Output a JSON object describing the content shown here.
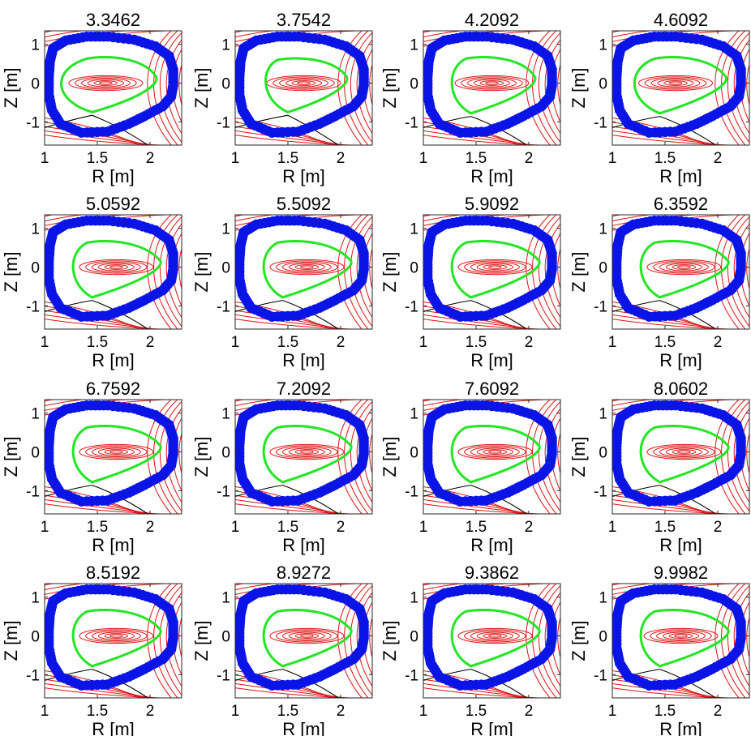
{
  "figure": {
    "background": "#ffffff",
    "colors": {
      "wall": "#0a14e6",
      "lcfs": "#22e622",
      "flux_contours": "#e01010",
      "separatrix_legs": "#000000",
      "strike_mark": "#d020d0"
    }
  },
  "chart_data": [
    {
      "type": "contour",
      "title": "3.3462",
      "xlabel": "R [m]",
      "ylabel": "Z [m]",
      "xlim": [
        1.0,
        2.3
      ],
      "ylim": [
        -1.6,
        1.35
      ],
      "xticks": [
        "1",
        "1.5",
        "2"
      ],
      "yticks": [
        "-1",
        "0",
        "1"
      ],
      "axis_center": [
        1.58,
        0.0
      ],
      "lcfs": {
        "r_in": 1.08,
        "r_out": 2.06,
        "z_top": 0.68,
        "z_bot": -0.75,
        "tip_r": 1.45
      }
    },
    {
      "type": "contour",
      "title": "3.7542",
      "xlabel": "R [m]",
      "ylabel": "Z [m]",
      "xlim": [
        1.0,
        2.3
      ],
      "ylim": [
        -1.6,
        1.35
      ],
      "xticks": [
        "1",
        "1.5",
        "2"
      ],
      "yticks": [
        "-1",
        "0",
        "1"
      ],
      "axis_center": [
        1.65,
        0.0
      ],
      "lcfs": {
        "r_in": 1.25,
        "r_out": 2.06,
        "z_top": 0.65,
        "z_bot": -0.75,
        "tip_r": 1.5
      }
    },
    {
      "type": "contour",
      "title": "4.2092",
      "xlabel": "R [m]",
      "ylabel": "Z [m]",
      "xlim": [
        1.0,
        2.3
      ],
      "ylim": [
        -1.6,
        1.35
      ],
      "xticks": [
        "1",
        "1.5",
        "2"
      ],
      "yticks": [
        "-1",
        "0",
        "1"
      ],
      "axis_center": [
        1.65,
        0.0
      ],
      "lcfs": {
        "r_in": 1.23,
        "r_out": 2.06,
        "z_top": 0.68,
        "z_bot": -0.78,
        "tip_r": 1.45
      }
    },
    {
      "type": "contour",
      "title": "4.6092",
      "xlabel": "R [m]",
      "ylabel": "Z [m]",
      "xlim": [
        1.0,
        2.3
      ],
      "ylim": [
        -1.6,
        1.35
      ],
      "xticks": [
        "1",
        "1.5",
        "2"
      ],
      "yticks": [
        "-1",
        "0",
        "1"
      ],
      "axis_center": [
        1.6,
        0.0
      ],
      "lcfs": {
        "r_in": 1.15,
        "r_out": 2.08,
        "z_top": 0.68,
        "z_bot": -0.78,
        "tip_r": 1.45
      }
    },
    {
      "type": "contour",
      "title": "5.0592",
      "xlabel": "R [m]",
      "ylabel": "Z [m]",
      "xlim": [
        1.0,
        2.3
      ],
      "ylim": [
        -1.6,
        1.35
      ],
      "xticks": [
        "1",
        "1.5",
        "2"
      ],
      "yticks": [
        "-1",
        "0",
        "1"
      ],
      "axis_center": [
        1.68,
        0.0
      ],
      "lcfs": {
        "r_in": 1.23,
        "r_out": 2.1,
        "z_top": 0.68,
        "z_bot": -0.78,
        "tip_r": 1.45
      }
    },
    {
      "type": "contour",
      "title": "5.5092",
      "xlabel": "R [m]",
      "ylabel": "Z [m]",
      "xlim": [
        1.0,
        2.3
      ],
      "ylim": [
        -1.6,
        1.35
      ],
      "xticks": [
        "1",
        "1.5",
        "2"
      ],
      "yticks": [
        "-1",
        "0",
        "1"
      ],
      "axis_center": [
        1.68,
        0.0
      ],
      "lcfs": {
        "r_in": 1.23,
        "r_out": 2.1,
        "z_top": 0.68,
        "z_bot": -0.78,
        "tip_r": 1.45
      }
    },
    {
      "type": "contour",
      "title": "5.9092",
      "xlabel": "R [m]",
      "ylabel": "Z [m]",
      "xlim": [
        1.0,
        2.3
      ],
      "ylim": [
        -1.6,
        1.35
      ],
      "xticks": [
        "1",
        "1.5",
        "2"
      ],
      "yticks": [
        "-1",
        "0",
        "1"
      ],
      "axis_center": [
        1.68,
        0.0
      ],
      "lcfs": {
        "r_in": 1.23,
        "r_out": 2.1,
        "z_top": 0.68,
        "z_bot": -0.78,
        "tip_r": 1.45
      }
    },
    {
      "type": "contour",
      "title": "6.3592",
      "xlabel": "R [m]",
      "ylabel": "Z [m]",
      "xlim": [
        1.0,
        2.3
      ],
      "ylim": [
        -1.6,
        1.35
      ],
      "xticks": [
        "1",
        "1.5",
        "2"
      ],
      "yticks": [
        "-1",
        "0",
        "1"
      ],
      "axis_center": [
        1.68,
        0.0
      ],
      "lcfs": {
        "r_in": 1.23,
        "r_out": 2.1,
        "z_top": 0.68,
        "z_bot": -0.78,
        "tip_r": 1.45
      }
    },
    {
      "type": "contour",
      "title": "6.7592",
      "xlabel": "R [m]",
      "ylabel": "Z [m]",
      "xlim": [
        1.0,
        2.3
      ],
      "ylim": [
        -1.6,
        1.35
      ],
      "xticks": [
        "1",
        "1.5",
        "2"
      ],
      "yticks": [
        "-1",
        "0",
        "1"
      ],
      "axis_center": [
        1.68,
        0.0
      ],
      "lcfs": {
        "r_in": 1.23,
        "r_out": 2.1,
        "z_top": 0.68,
        "z_bot": -0.78,
        "tip_r": 1.45
      }
    },
    {
      "type": "contour",
      "title": "7.2092",
      "xlabel": "R [m]",
      "ylabel": "Z [m]",
      "xlim": [
        1.0,
        2.3
      ],
      "ylim": [
        -1.6,
        1.35
      ],
      "xticks": [
        "1",
        "1.5",
        "2"
      ],
      "yticks": [
        "-1",
        "0",
        "1"
      ],
      "axis_center": [
        1.68,
        0.0
      ],
      "lcfs": {
        "r_in": 1.23,
        "r_out": 2.1,
        "z_top": 0.68,
        "z_bot": -0.78,
        "tip_r": 1.45
      }
    },
    {
      "type": "contour",
      "title": "7.6092",
      "xlabel": "R [m]",
      "ylabel": "Z [m]",
      "xlim": [
        1.0,
        2.3
      ],
      "ylim": [
        -1.6,
        1.35
      ],
      "xticks": [
        "1",
        "1.5",
        "2"
      ],
      "yticks": [
        "-1",
        "0",
        "1"
      ],
      "axis_center": [
        1.68,
        0.0
      ],
      "lcfs": {
        "r_in": 1.23,
        "r_out": 2.1,
        "z_top": 0.68,
        "z_bot": -0.78,
        "tip_r": 1.45
      }
    },
    {
      "type": "contour",
      "title": "8.0602",
      "xlabel": "R [m]",
      "ylabel": "Z [m]",
      "xlim": [
        1.0,
        2.3
      ],
      "ylim": [
        -1.6,
        1.35
      ],
      "xticks": [
        "1",
        "1.5",
        "2"
      ],
      "yticks": [
        "-1",
        "0",
        "1"
      ],
      "axis_center": [
        1.68,
        0.0
      ],
      "lcfs": {
        "r_in": 1.23,
        "r_out": 2.1,
        "z_top": 0.68,
        "z_bot": -0.78,
        "tip_r": 1.45
      }
    },
    {
      "type": "contour",
      "title": "8.5192",
      "xlabel": "R [m]",
      "ylabel": "Z [m]",
      "xlim": [
        1.0,
        2.3
      ],
      "ylim": [
        -1.6,
        1.35
      ],
      "xticks": [
        "1",
        "1.5",
        "2"
      ],
      "yticks": [
        "-1",
        "0",
        "1"
      ],
      "axis_center": [
        1.68,
        0.0
      ],
      "lcfs": {
        "r_in": 1.23,
        "r_out": 2.1,
        "z_top": 0.68,
        "z_bot": -0.78,
        "tip_r": 1.45
      }
    },
    {
      "type": "contour",
      "title": "8.9272",
      "xlabel": "R [m]",
      "ylabel": "Z [m]",
      "xlim": [
        1.0,
        2.3
      ],
      "ylim": [
        -1.6,
        1.35
      ],
      "xticks": [
        "1",
        "1.5",
        "2"
      ],
      "yticks": [
        "-1",
        "0",
        "1"
      ],
      "axis_center": [
        1.68,
        0.0
      ],
      "lcfs": {
        "r_in": 1.23,
        "r_out": 2.1,
        "z_top": 0.68,
        "z_bot": -0.78,
        "tip_r": 1.45
      }
    },
    {
      "type": "contour",
      "title": "9.3862",
      "xlabel": "R [m]",
      "ylabel": "Z [m]",
      "xlim": [
        1.0,
        2.3
      ],
      "ylim": [
        -1.6,
        1.35
      ],
      "xticks": [
        "1",
        "1.5",
        "2"
      ],
      "yticks": [
        "-1",
        "0",
        "1"
      ],
      "axis_center": [
        1.68,
        0.0
      ],
      "lcfs": {
        "r_in": 1.23,
        "r_out": 2.1,
        "z_top": 0.68,
        "z_bot": -0.78,
        "tip_r": 1.45
      }
    },
    {
      "type": "contour",
      "title": "9.9982",
      "xlabel": "R [m]",
      "ylabel": "Z [m]",
      "xlim": [
        1.0,
        2.3
      ],
      "ylim": [
        -1.6,
        1.35
      ],
      "xticks": [
        "1",
        "1.5",
        "2"
      ],
      "yticks": [
        "-1",
        "0",
        "1"
      ],
      "axis_center": [
        1.65,
        0.0
      ],
      "lcfs": {
        "r_in": 1.23,
        "r_out": 2.1,
        "z_top": 0.68,
        "z_bot": -0.78,
        "tip_r": 1.45
      }
    }
  ]
}
